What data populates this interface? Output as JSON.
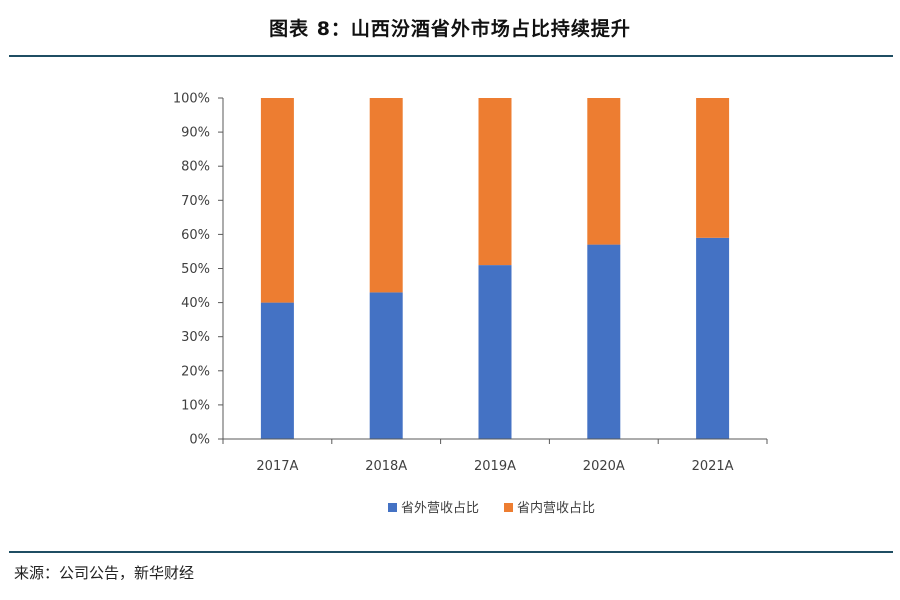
{
  "title": "图表 8：山西汾酒省外市场占比持续提升",
  "source": "来源：公司公告，新华财经",
  "colors": {
    "rule": "#1f4e63",
    "axis": "#595959",
    "text": "#404040"
  },
  "chart_data": {
    "type": "bar",
    "stacked": true,
    "categories": [
      "2017A",
      "2018A",
      "2019A",
      "2020A",
      "2021A"
    ],
    "series": [
      {
        "name": "省外营收占比",
        "color": "#4472c4",
        "values": [
          40,
          43,
          51,
          57,
          59
        ]
      },
      {
        "name": "省内营收占比",
        "color": "#ed7d31",
        "values": [
          60,
          57,
          49,
          43,
          41
        ]
      }
    ],
    "ylim": [
      0,
      100
    ],
    "yticks": [
      0,
      10,
      20,
      30,
      40,
      50,
      60,
      70,
      80,
      90,
      100
    ],
    "tick_labels": [
      "0%",
      "10%",
      "20%",
      "30%",
      "40%",
      "50%",
      "60%",
      "70%",
      "80%",
      "90%",
      "100%"
    ],
    "legend_position": "bottom",
    "grid": false
  }
}
